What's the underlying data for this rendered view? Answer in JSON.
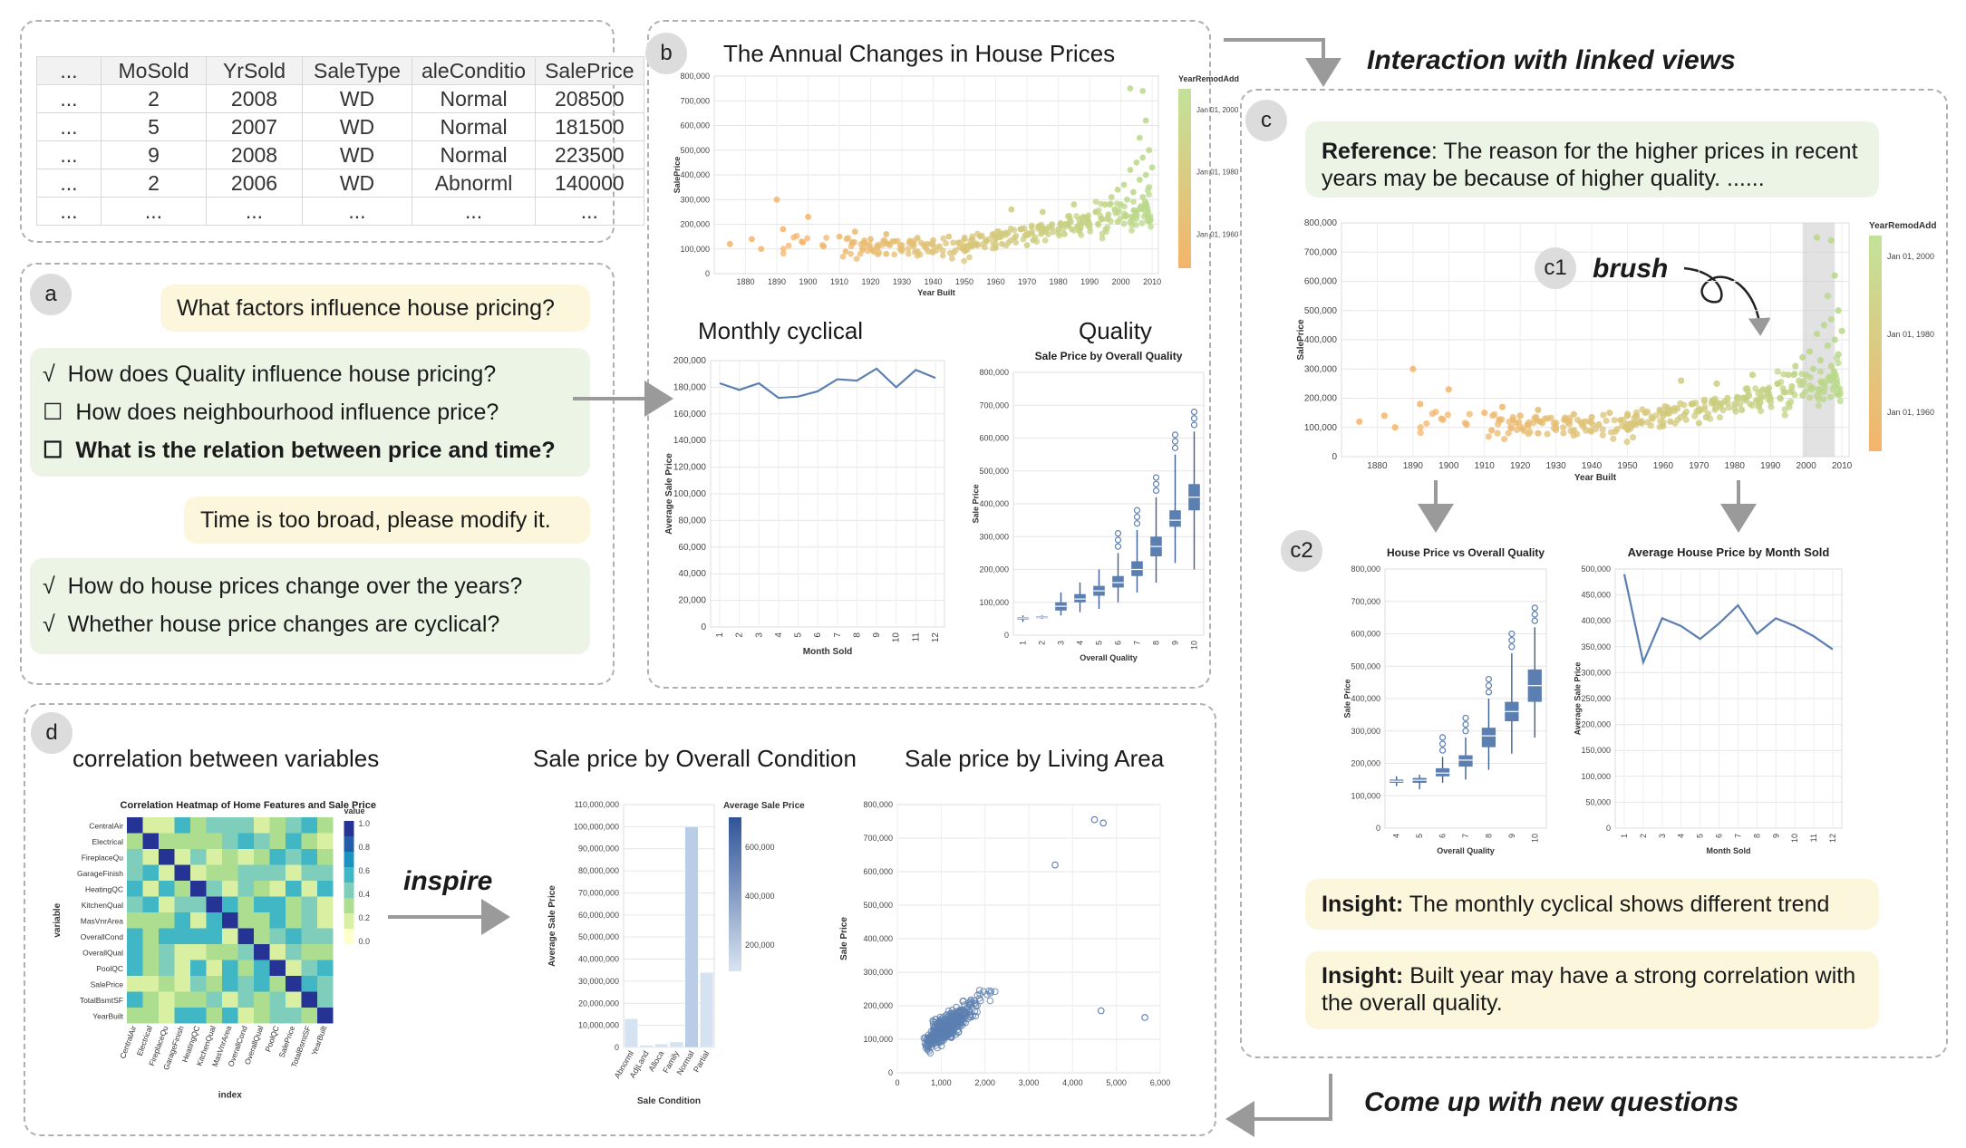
{
  "headings": {
    "linked_views": "Interaction with linked views",
    "new_questions": "Come up with new questions",
    "inspire": "inspire",
    "brush": "brush"
  },
  "badges": {
    "a": "a",
    "b": "b",
    "c": "c",
    "c1": "c1",
    "c2": "c2",
    "d": "d"
  },
  "table": {
    "headers": [
      "...",
      "MoSold",
      "YrSold",
      "SaleType",
      "aleConditio",
      "SalePrice"
    ],
    "rows": [
      [
        "...",
        "2",
        "2008",
        "WD",
        "Normal",
        "208500"
      ],
      [
        "...",
        "5",
        "2007",
        "WD",
        "Normal",
        "181500"
      ],
      [
        "...",
        "9",
        "2008",
        "WD",
        "Normal",
        "223500"
      ],
      [
        "...",
        "2",
        "2006",
        "WD",
        "Abnorml",
        "140000"
      ],
      [
        "...",
        "...",
        "...",
        "...",
        "...",
        "..."
      ]
    ]
  },
  "panel_a": {
    "user_question": "What factors influence house pricing?",
    "suggestions_1": [
      {
        "mark": "√",
        "text": "How does Quality influence house pricing?"
      },
      {
        "mark": "☐",
        "text": "How does neighbourhood influence price?"
      },
      {
        "mark": "☐",
        "text": "What is the relation between price and time?"
      }
    ],
    "user_feedback": "Time is too broad, please modify it.",
    "suggestions_2": [
      {
        "mark": "√",
        "text": "How do house prices change over the years?"
      },
      {
        "mark": "√",
        "text": "Whether house price changes are cyclical?"
      }
    ]
  },
  "panel_b": {
    "scatter_title": "The Annual Changes in House Prices",
    "monthly_title": "Monthly cyclical",
    "quality_title": "Quality"
  },
  "panel_c": {
    "reference_label": "Reference",
    "reference_text": ": The reason for the higher prices in recent years may be because of higher quality. ......",
    "insight_label": "Insight:",
    "insight1_text": " The monthly cyclical shows different trend",
    "insight2_text": " Built year may have a strong correlation with the overall quality."
  },
  "panel_d": {
    "corr_title": "correlation between variables",
    "cond_title": "Sale price by Overall Condition",
    "area_title": "Sale price by Living Area"
  },
  "colors": {
    "accent": "#5b7fb0",
    "scatter_green": "#b8d98a",
    "scatter_orange": "#f4b46a",
    "bubble_yellow": "#fbf6dc",
    "bubble_green": "#ecf4e6"
  },
  "chart_data": [
    {
      "id": "b_scatter",
      "type": "scatter",
      "title": "The Annual Changes in House Prices",
      "xlabel": "Year Built",
      "ylabel": "SalePrice",
      "xticks": [
        "1880",
        "1890",
        "1900",
        "1910",
        "1920",
        "1930",
        "1940",
        "1950",
        "1960",
        "1970",
        "1980",
        "1990",
        "2000",
        "2010"
      ],
      "yticks": [
        "0",
        "100,000",
        "200,000",
        "300,000",
        "400,000",
        "500,000",
        "600,000",
        "700,000",
        "800,000"
      ],
      "xlim": [
        1870,
        2012
      ],
      "ylim": [
        0,
        800000
      ],
      "legend_title": "YearRemodAdd",
      "legend_labels": [
        "Jan 01, 2000",
        "Jan 01, 1980",
        "Jan 01, 1960"
      ],
      "points": [
        [
          1875,
          120000
        ],
        [
          1882,
          140000
        ],
        [
          1885,
          100000
        ],
        [
          1892,
          180000
        ],
        [
          1898,
          130000
        ],
        [
          1900,
          230000
        ],
        [
          1905,
          110000
        ],
        [
          1910,
          150000
        ],
        [
          1912,
          90000
        ],
        [
          1915,
          170000
        ],
        [
          1918,
          125000
        ],
        [
          1920,
          140000
        ],
        [
          1922,
          110000
        ],
        [
          1925,
          160000
        ],
        [
          1927,
          130000
        ],
        [
          1930,
          100000
        ],
        [
          1935,
          145000
        ],
        [
          1938,
          120000
        ],
        [
          1940,
          135000
        ],
        [
          1942,
          110000
        ],
        [
          1945,
          150000
        ],
        [
          1948,
          125000
        ],
        [
          1950,
          140000
        ],
        [
          1952,
          115000
        ],
        [
          1955,
          150000
        ],
        [
          1957,
          130000
        ],
        [
          1959,
          160000
        ],
        [
          1960,
          140000
        ],
        [
          1962,
          120000
        ],
        [
          1964,
          165000
        ],
        [
          1966,
          145000
        ],
        [
          1968,
          180000
        ],
        [
          1970,
          155000
        ],
        [
          1972,
          135000
        ],
        [
          1974,
          190000
        ],
        [
          1976,
          170000
        ],
        [
          1978,
          200000
        ],
        [
          1980,
          180000
        ],
        [
          1982,
          160000
        ],
        [
          1984,
          210000
        ],
        [
          1986,
          190000
        ],
        [
          1988,
          230000
        ],
        [
          1990,
          200000
        ],
        [
          1992,
          250000
        ],
        [
          1994,
          220000
        ],
        [
          1995,
          280000
        ],
        [
          1996,
          240000
        ],
        [
          1997,
          310000
        ],
        [
          1998,
          260000
        ],
        [
          1999,
          340000
        ],
        [
          2000,
          280000
        ],
        [
          2001,
          360000
        ],
        [
          2002,
          300000
        ],
        [
          2003,
          420000
        ],
        [
          2004,
          330000
        ],
        [
          2005,
          450000
        ],
        [
          2005,
          250000
        ],
        [
          2006,
          380000
        ],
        [
          2006,
          550000
        ],
        [
          2007,
          310000
        ],
        [
          2007,
          470000
        ],
        [
          2008,
          400000
        ],
        [
          2008,
          620000
        ],
        [
          2009,
          350000
        ],
        [
          2009,
          500000
        ],
        [
          2010,
          430000
        ],
        [
          2003,
          750000
        ],
        [
          2007,
          740000
        ],
        [
          1935,
          90000
        ],
        [
          1925,
          80000
        ],
        [
          1950,
          95000
        ],
        [
          1960,
          105000
        ],
        [
          1970,
          115000
        ],
        [
          1890,
          300000
        ],
        [
          1965,
          260000
        ],
        [
          1975,
          250000
        ],
        [
          1985,
          280000
        ],
        [
          1999,
          210000
        ],
        [
          2004,
          230000
        ]
      ]
    },
    {
      "id": "b_monthly",
      "type": "line",
      "xlabel": "Month Sold",
      "ylabel": "Average Sale Price",
      "x": [
        "1",
        "2",
        "3",
        "4",
        "5",
        "6",
        "7",
        "8",
        "9",
        "10",
        "11",
        "12"
      ],
      "values": [
        183000,
        178000,
        183000,
        172000,
        173000,
        177000,
        186000,
        185000,
        194000,
        180000,
        193000,
        187000
      ],
      "yticks": [
        "0",
        "20,000",
        "40,000",
        "60,000",
        "80,000",
        "100,000",
        "120,000",
        "140,000",
        "160,000",
        "180,000",
        "200,000"
      ],
      "ylim": [
        0,
        200000
      ]
    },
    {
      "id": "b_quality",
      "type": "box",
      "title": "Sale Price by Overall Quality",
      "xlabel": "Overall Quality",
      "ylabel": "Sale Price",
      "categories": [
        "1",
        "2",
        "3",
        "4",
        "5",
        "6",
        "7",
        "8",
        "9",
        "10"
      ],
      "boxes": [
        [
          40000,
          48000,
          52000,
          55000,
          60000
        ],
        [
          50000,
          52000,
          55000,
          58000,
          60000
        ],
        [
          60000,
          75000,
          88000,
          100000,
          130000
        ],
        [
          70000,
          100000,
          110000,
          125000,
          160000
        ],
        [
          80000,
          120000,
          135000,
          150000,
          200000
        ],
        [
          100000,
          145000,
          160000,
          180000,
          250000
        ],
        [
          130000,
          180000,
          200000,
          225000,
          320000
        ],
        [
          160000,
          240000,
          270000,
          300000,
          420000
        ],
        [
          220000,
          330000,
          350000,
          380000,
          550000
        ],
        [
          200000,
          380000,
          420000,
          460000,
          620000
        ]
      ],
      "yticks": [
        "0",
        "100,000",
        "200,000",
        "300,000",
        "400,000",
        "500,000",
        "600,000",
        "700,000",
        "800,000"
      ],
      "ylim": [
        0,
        800000
      ]
    },
    {
      "id": "c_scatter",
      "type": "scatter",
      "xlabel": "Year Built",
      "ylabel": "SalePrice",
      "xticks": [
        "1880",
        "1890",
        "1900",
        "1910",
        "1920",
        "1930",
        "1940",
        "1950",
        "1960",
        "1970",
        "1980",
        "1990",
        "2000",
        "2010"
      ],
      "yticks": [
        "0",
        "100,000",
        "200,000",
        "300,000",
        "400,000",
        "500,000",
        "600,000",
        "700,000",
        "800,000"
      ],
      "xlim": [
        1870,
        2012
      ],
      "ylim": [
        0,
        800000
      ],
      "legend_title": "YearRemodAdd",
      "legend_labels": [
        "Jan 01, 2000",
        "Jan 01, 1980",
        "Jan 01, 1960"
      ],
      "brush_range": [
        1999,
        2008
      ]
    },
    {
      "id": "c2_quality",
      "type": "box",
      "title": "House Price vs Overall Quality",
      "xlabel": "Overall Quality",
      "ylabel": "Sale Price",
      "categories": [
        "4",
        "5",
        "6",
        "7",
        "8",
        "9",
        "10"
      ],
      "boxes": [
        [
          130000,
          140000,
          145000,
          150000,
          160000
        ],
        [
          120000,
          140000,
          148000,
          155000,
          165000
        ],
        [
          140000,
          160000,
          170000,
          185000,
          220000
        ],
        [
          150000,
          190000,
          210000,
          225000,
          280000
        ],
        [
          180000,
          250000,
          285000,
          310000,
          400000
        ],
        [
          230000,
          330000,
          360000,
          390000,
          540000
        ],
        [
          280000,
          390000,
          440000,
          490000,
          620000
        ]
      ],
      "yticks": [
        "0",
        "100,000",
        "200,000",
        "300,000",
        "400,000",
        "500,000",
        "600,000",
        "700,000",
        "800,000"
      ],
      "ylim": [
        0,
        800000
      ]
    },
    {
      "id": "c2_monthly",
      "type": "line",
      "title": "Average House Price by Month Sold",
      "xlabel": "Month Sold",
      "ylabel": "Average Sale Price",
      "x": [
        "1",
        "2",
        "3",
        "4",
        "5",
        "6",
        "7",
        "8",
        "9",
        "10",
        "11",
        "12"
      ],
      "values": [
        490000,
        320000,
        405000,
        390000,
        365000,
        395000,
        430000,
        375000,
        405000,
        390000,
        370000,
        345000
      ],
      "yticks": [
        "0",
        "50,000",
        "100,000",
        "150,000",
        "200,000",
        "250,000",
        "300,000",
        "350,000",
        "400,000",
        "450,000",
        "500,000"
      ],
      "ylim": [
        0,
        500000
      ]
    },
    {
      "id": "d_heatmap",
      "type": "heatmap",
      "title": "Correlation Heatmap of Home Features and Sale Price",
      "xlabel": "index",
      "ylabel": "variable",
      "legend_title": "value",
      "labels": [
        "CentralAir",
        "Electrical",
        "FireplaceQu",
        "GarageFinish",
        "HeatingQC",
        "KitchenQual",
        "MasVnrArea",
        "OverallCond",
        "OverallQual",
        "PoolQC",
        "SalePrice",
        "TotalBsmtSF",
        "YearBuilt"
      ],
      "legend_ticks": [
        "1.0",
        "0.8",
        "0.6",
        "0.4",
        "0.2",
        "0.0"
      ]
    },
    {
      "id": "d_condition",
      "type": "bar",
      "xlabel": "Sale Condition",
      "ylabel": "Average Sale Price",
      "legend_title": "Average Sale Price",
      "legend_ticks": [
        "600,000",
        "400,000",
        "200,000"
      ],
      "categories": [
        "Abnorml",
        "AdjLand",
        "Alloca",
        "Family",
        "Normal",
        "Partial"
      ],
      "values": [
        13000000,
        1000000,
        1500000,
        2500000,
        100000000,
        34000000
      ],
      "yticks": [
        "0",
        "10,000,000",
        "20,000,000",
        "30,000,000",
        "40,000,000",
        "50,000,000",
        "60,000,000",
        "70,000,000",
        "80,000,000",
        "90,000,000",
        "100,000,000",
        "110,000,000"
      ],
      "ylim": [
        0,
        110000000
      ]
    },
    {
      "id": "d_area",
      "type": "scatter",
      "xlabel": "",
      "ylabel": "Sale Price",
      "xticks": [
        "0",
        "1,000",
        "2,000",
        "3,000",
        "4,000",
        "5,000",
        "6,000"
      ],
      "yticks": [
        "0",
        "100,000",
        "200,000",
        "300,000",
        "400,000",
        "500,000",
        "600,000",
        "700,000",
        "800,000"
      ],
      "xlim": [
        0,
        6000
      ],
      "ylim": [
        0,
        800000
      ]
    }
  ]
}
